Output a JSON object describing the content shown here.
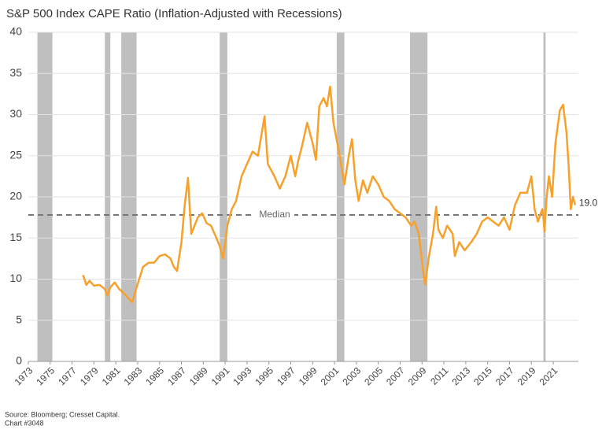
{
  "chart_data": {
    "type": "line",
    "title": "S&P 500 Index CAPE Ratio (Inflation-Adjusted with Recessions)",
    "source": "Source: Bloomberg; Cresset Capital.",
    "note": "Chart #3048",
    "color": "#f7a12b",
    "grid": true,
    "xlim": [
      1973,
      2023.3
    ],
    "xticks": [
      1973,
      1975,
      1977,
      1979,
      1981,
      1983,
      1985,
      1987,
      1989,
      1991,
      1993,
      1995,
      1997,
      1999,
      2001,
      2003,
      2005,
      2007,
      2009,
      2011,
      2013,
      2015,
      2017,
      2019,
      2021
    ],
    "ylim": [
      0,
      40
    ],
    "yticks": [
      0,
      5,
      10,
      15,
      20,
      25,
      30,
      35,
      40
    ],
    "recessions": [
      [
        1973.83,
        1975.2
      ],
      [
        1980.0,
        1980.5
      ],
      [
        1981.5,
        1982.9
      ],
      [
        1990.5,
        1991.2
      ],
      [
        2001.2,
        2001.9
      ],
      [
        2007.9,
        2009.5
      ],
      [
        2020.1,
        2020.3
      ]
    ],
    "recession_color": "#bfbfbf",
    "median": {
      "value": 17.8,
      "label": "Median"
    },
    "x": [
      1978.0,
      1978.3,
      1978.6,
      1979.0,
      1979.5,
      1980.0,
      1980.2,
      1980.5,
      1980.9,
      1981.3,
      1981.8,
      1982.5,
      1982.9,
      1983.5,
      1984.0,
      1984.5,
      1985.0,
      1985.5,
      1986.0,
      1986.3,
      1986.6,
      1987.0,
      1987.3,
      1987.6,
      1987.9,
      1988.5,
      1988.9,
      1989.3,
      1989.7,
      1990.2,
      1990.5,
      1990.8,
      1991.2,
      1991.6,
      1992.0,
      1992.5,
      1993.0,
      1993.5,
      1994.0,
      1994.6,
      1994.9,
      1995.5,
      1996.0,
      1996.5,
      1997.0,
      1997.4,
      1997.7,
      1998.0,
      1998.5,
      1999.0,
      1999.3,
      1999.6,
      2000.0,
      2000.3,
      2000.6,
      2000.9,
      2001.4,
      2001.9,
      2002.3,
      2002.6,
      2002.9,
      2003.2,
      2003.6,
      2004.0,
      2004.5,
      2005.0,
      2005.5,
      2006.0,
      2006.5,
      2007.0,
      2007.5,
      2008.0,
      2008.3,
      2008.7,
      2009.1,
      2009.3,
      2009.6,
      2010.0,
      2010.3,
      2010.5,
      2010.9,
      2011.3,
      2011.8,
      2012.0,
      2012.4,
      2012.9,
      2013.5,
      2014.0,
      2014.5,
      2015.0,
      2015.5,
      2016.0,
      2016.5,
      2017.0,
      2017.5,
      2018.0,
      2018.6,
      2019.0,
      2019.3,
      2019.6,
      2020.0,
      2020.1,
      2020.2,
      2020.4,
      2020.6,
      2020.9,
      2021.2,
      2021.6,
      2021.9,
      2022.2,
      2022.4,
      2022.6,
      2022.8,
      2023.0
    ],
    "values": [
      10.5,
      9.3,
      9.8,
      9.2,
      9.3,
      8.8,
      8.0,
      9.0,
      9.6,
      8.8,
      8.2,
      7.2,
      9.0,
      11.5,
      12.0,
      12.0,
      12.8,
      13.0,
      12.5,
      11.5,
      11.0,
      14.5,
      19.0,
      22.3,
      15.5,
      17.5,
      18.0,
      16.8,
      16.5,
      15.0,
      14.0,
      12.5,
      16.5,
      18.5,
      19.5,
      22.5,
      24.0,
      25.5,
      25.0,
      29.8,
      24.0,
      22.5,
      21.0,
      22.5,
      25.0,
      22.5,
      24.5,
      26.0,
      29.0,
      26.5,
      24.5,
      31.0,
      32.0,
      31.0,
      33.4,
      29.0,
      25.5,
      21.5,
      25.0,
      27.0,
      22.0,
      19.5,
      22.0,
      20.5,
      22.5,
      21.5,
      20.0,
      19.5,
      18.5,
      18.0,
      17.5,
      16.5,
      17.0,
      15.5,
      11.0,
      9.3,
      12.5,
      15.5,
      18.8,
      16.0,
      15.0,
      16.5,
      15.5,
      12.8,
      14.5,
      13.5,
      14.5,
      15.5,
      17.0,
      17.5,
      17.0,
      16.5,
      17.5,
      16.0,
      19.0,
      20.5,
      20.5,
      22.5,
      18.5,
      17.0,
      18.5,
      17.5,
      15.8,
      20.0,
      22.5,
      20.0,
      26.5,
      30.5,
      31.2,
      28.0,
      24.0,
      18.5,
      20.0,
      19.0
    ],
    "value_labels": [
      null,
      null,
      null,
      null,
      null,
      null,
      null,
      null,
      null,
      null,
      null,
      null,
      null,
      null,
      null,
      null,
      null,
      null,
      null,
      null,
      null,
      null,
      null,
      null,
      null,
      null,
      null,
      null,
      null,
      null,
      null,
      null,
      null,
      null,
      null,
      null,
      null,
      null,
      null,
      null,
      null,
      null,
      null,
      null,
      null,
      null,
      null,
      null,
      null,
      null,
      null,
      null,
      null,
      null,
      null,
      null,
      null,
      null,
      null,
      null,
      null,
      null,
      null,
      null,
      null,
      null,
      null,
      null,
      null,
      null,
      null,
      null,
      null,
      null,
      null,
      null,
      null,
      null,
      null,
      null,
      null,
      null,
      null,
      null,
      null,
      null,
      null,
      null,
      null,
      null,
      null,
      null,
      null,
      null,
      null,
      null,
      null,
      null,
      null,
      null,
      null,
      null,
      null,
      null,
      null,
      null,
      null,
      null,
      null,
      null,
      null,
      null,
      null,
      "19.0"
    ]
  }
}
